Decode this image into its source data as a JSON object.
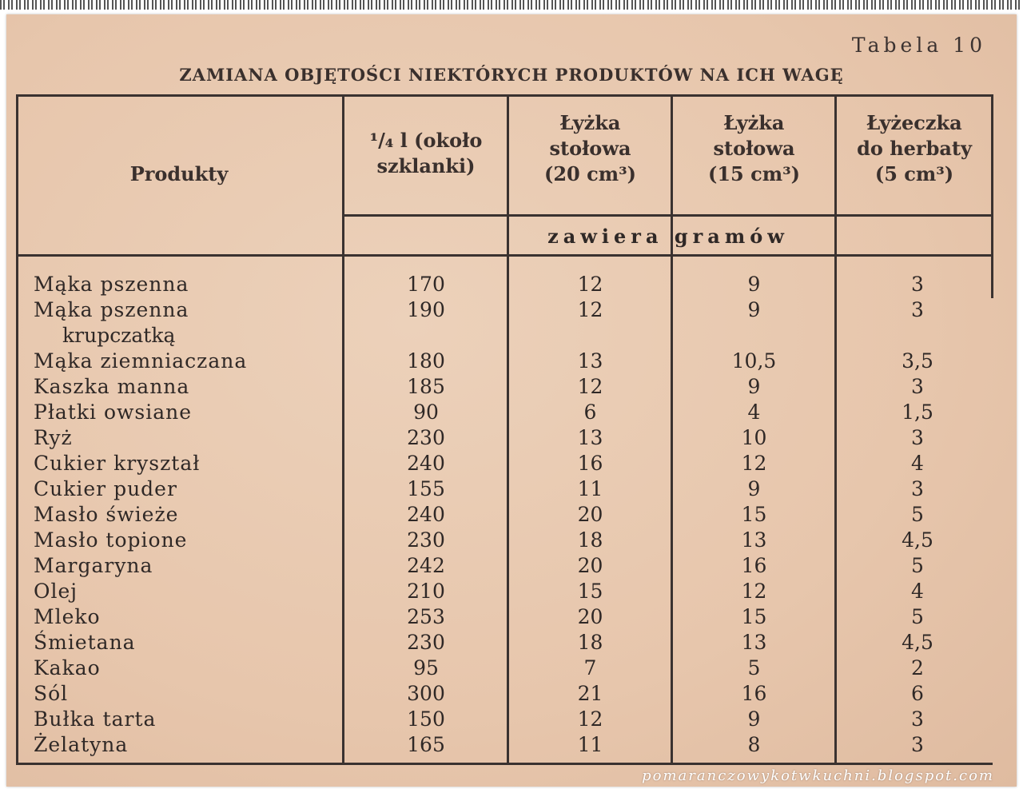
{
  "table_number": "Tabela 10",
  "title": "ZAMIANA OBJĘTOŚCI NIEKTÓRYCH PRODUKTÓW NA ICH WAGĘ",
  "headers": {
    "product": "Produkty",
    "col1": [
      "¹/₄ l (około",
      "szklanki)"
    ],
    "col2": [
      "Łyżka",
      "stołowa",
      "(20 cm³)"
    ],
    "col3": [
      "Łyżka",
      "stołowa",
      "(15 cm³)"
    ],
    "col4": [
      "Łyżeczka",
      "do herbaty",
      "(5 cm³)"
    ],
    "unit_row": "zawiera gramów"
  },
  "rows": [
    {
      "name": "Mąka pszenna",
      "v": [
        "170",
        "12",
        "9",
        "3"
      ]
    },
    {
      "name": "Mąka pszenna",
      "name2": "krupczatką",
      "v": [
        "190",
        "12",
        "9",
        "3"
      ]
    },
    {
      "name": "Mąka ziemniaczana",
      "v": [
        "180",
        "13",
        "10,5",
        "3,5"
      ]
    },
    {
      "name": "Kaszka manna",
      "v": [
        "185",
        "12",
        "9",
        "3"
      ]
    },
    {
      "name": "Płatki owsiane",
      "v": [
        "90",
        "6",
        "4",
        "1,5"
      ]
    },
    {
      "name": "Ryż",
      "v": [
        "230",
        "13",
        "10",
        "3"
      ]
    },
    {
      "name": "Cukier kryształ",
      "v": [
        "240",
        "16",
        "12",
        "4"
      ]
    },
    {
      "name": "Cukier puder",
      "v": [
        "155",
        "11",
        "9",
        "3"
      ]
    },
    {
      "name": "Masło świeże",
      "v": [
        "240",
        "20",
        "15",
        "5"
      ]
    },
    {
      "name": "Masło topione",
      "v": [
        "230",
        "18",
        "13",
        "4,5"
      ]
    },
    {
      "name": "Margaryna",
      "v": [
        "242",
        "20",
        "16",
        "5"
      ]
    },
    {
      "name": "Olej",
      "v": [
        "210",
        "15",
        "12",
        "4"
      ]
    },
    {
      "name": "Mleko",
      "v": [
        "253",
        "20",
        "15",
        "5"
      ]
    },
    {
      "name": "Śmietana",
      "v": [
        "230",
        "18",
        "13",
        "4,5"
      ]
    },
    {
      "name": "Kakao",
      "v": [
        "95",
        "7",
        "5",
        "2"
      ]
    },
    {
      "name": "Sól",
      "v": [
        "300",
        "21",
        "16",
        "6"
      ]
    },
    {
      "name": "Bułka tarta",
      "v": [
        "150",
        "12",
        "9",
        "3"
      ]
    },
    {
      "name": "Żelatyna",
      "v": [
        "165",
        "11",
        "8",
        "3"
      ]
    }
  ],
  "watermark": "pomaranczowykotwkuchni.blogspot.com"
}
